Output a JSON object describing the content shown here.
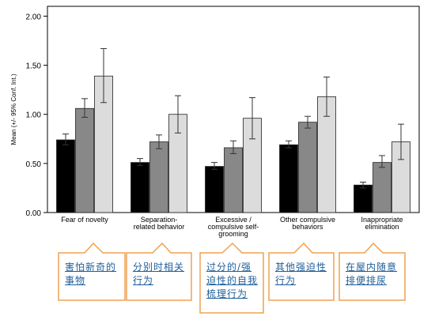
{
  "chart_data": {
    "type": "bar",
    "ylabel": "Mean (+/- 95% Conf. Int.)",
    "ylim": [
      0,
      2.1
    ],
    "y_ticks": [
      "0.00",
      "0.50",
      "1.00",
      "1.50",
      "2.00"
    ],
    "y_tick_values": [
      0,
      0.5,
      1,
      1.5,
      2
    ],
    "categories": [
      [
        "Fear of novelty"
      ],
      [
        "Separation-",
        "related behavior"
      ],
      [
        "Excessive /",
        "compulsive self-",
        "grooming"
      ],
      [
        "Other compulsive",
        "behaviors"
      ],
      [
        "Inappropriate",
        "elimination"
      ]
    ],
    "series": [
      {
        "color": "#000000",
        "values": [
          0.74,
          0.51,
          0.47,
          0.69,
          0.28
        ],
        "ci_low": [
          0.69,
          0.48,
          0.44,
          0.66,
          0.25
        ],
        "ci_high": [
          0.8,
          0.55,
          0.51,
          0.73,
          0.31
        ]
      },
      {
        "color": "#888888",
        "values": [
          1.06,
          0.72,
          0.66,
          0.92,
          0.51
        ],
        "ci_low": [
          0.97,
          0.65,
          0.6,
          0.86,
          0.46
        ],
        "ci_high": [
          1.16,
          0.79,
          0.73,
          0.98,
          0.58
        ]
      },
      {
        "color": "#dcdcdc",
        "values": [
          1.39,
          1.0,
          0.96,
          1.18,
          0.72
        ],
        "ci_low": [
          1.12,
          0.81,
          0.75,
          0.98,
          0.54
        ],
        "ci_high": [
          1.67,
          1.19,
          1.17,
          1.38,
          0.9
        ]
      }
    ],
    "grid": false,
    "legend": "none"
  },
  "callouts": [
    {
      "text": "害怕新奇的事物"
    },
    {
      "text": "分别时相关行为"
    },
    {
      "text": "过分的/强迫性的自我梳理行为"
    },
    {
      "text": "其他强迫性行为"
    },
    {
      "text": "在屋内随意排便排尿"
    }
  ]
}
